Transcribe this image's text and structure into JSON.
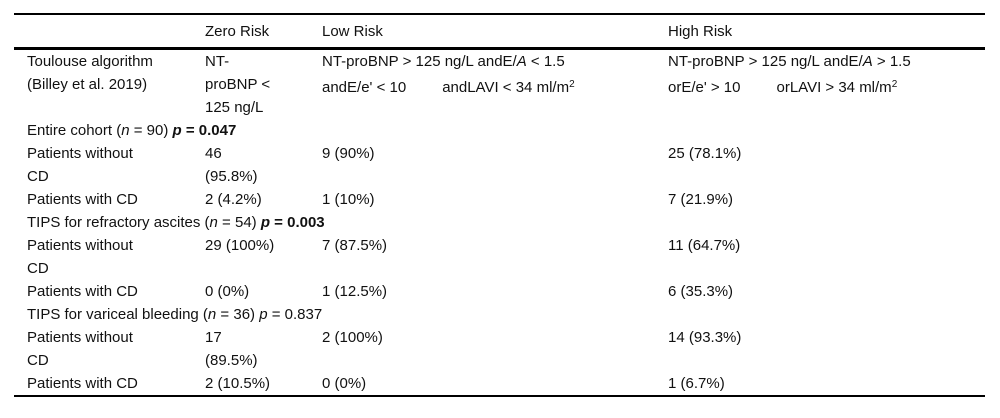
{
  "table": {
    "columns": [
      "",
      "Zero Risk",
      "Low Risk",
      "High Risk"
    ],
    "algorithm": {
      "label_lines": [
        "Toulouse algorithm",
        "(Billey et al. 2019)"
      ],
      "zero_lines": [
        "NT-",
        "proBNP <",
        "125 ng/L"
      ],
      "low_line1": [
        {
          "t": "NT-proBNP > 125 ng/L andE/"
        },
        {
          "t": "A",
          "s": "i"
        },
        {
          "t": " < 1.5"
        }
      ],
      "low_line2": [
        {
          "t": "andE/e' < 10"
        },
        {
          "t": "",
          "s": "gap"
        },
        {
          "t": "andLAVI < 34 ml/m"
        },
        {
          "t": "2",
          "s": "sup"
        }
      ],
      "high_line1": [
        {
          "t": "NT-proBNP > 125 ng/L andE/"
        },
        {
          "t": "A",
          "s": "i"
        },
        {
          "t": " > 1.5"
        }
      ],
      "high_line2": [
        {
          "t": "orE/e' > 10"
        },
        {
          "t": "",
          "s": "gap"
        },
        {
          "t": "orLAVI > 34 ml/m"
        },
        {
          "t": "2",
          "s": "sup"
        }
      ]
    },
    "sections": [
      {
        "heading": [
          {
            "t": "Entire cohort ("
          },
          {
            "t": "n",
            "s": "i"
          },
          {
            "t": " = 90) "
          },
          {
            "t": "p",
            "s": "bi"
          },
          {
            "t": " = 0.047",
            "s": "b"
          }
        ],
        "rows": [
          {
            "label_lines": [
              "Patients without",
              "CD"
            ],
            "zero_lines": [
              "46",
              "(95.8%)"
            ],
            "low": "9 (90%)",
            "high": "25 (78.1%)"
          },
          {
            "label_lines": [
              "Patients with CD"
            ],
            "zero_lines": [
              "2 (4.2%)"
            ],
            "low": "1 (10%)",
            "high": "7 (21.9%)"
          }
        ]
      },
      {
        "heading": [
          {
            "t": "TIPS for refractory ascites ("
          },
          {
            "t": "n",
            "s": "i"
          },
          {
            "t": " = 54) "
          },
          {
            "t": "p",
            "s": "bi"
          },
          {
            "t": " = 0.003",
            "s": "b"
          }
        ],
        "rows": [
          {
            "label_lines": [
              "Patients without",
              "CD"
            ],
            "zero_lines": [
              "29 (100%)"
            ],
            "low": "7 (87.5%)",
            "high": "11 (64.7%)"
          },
          {
            "label_lines": [
              "Patients with CD"
            ],
            "zero_lines": [
              "0 (0%)"
            ],
            "low": "1 (12.5%)",
            "high": "6 (35.3%)"
          }
        ]
      },
      {
        "heading": [
          {
            "t": "TIPS for variceal bleeding ("
          },
          {
            "t": "n",
            "s": "i"
          },
          {
            "t": " = 36) "
          },
          {
            "t": "p",
            "s": "i"
          },
          {
            "t": " = 0.837"
          }
        ],
        "rows": [
          {
            "label_lines": [
              "Patients without",
              "CD"
            ],
            "zero_lines": [
              "17",
              "(89.5%)"
            ],
            "low": "2 (100%)",
            "high": "14 (93.3%)"
          },
          {
            "label_lines": [
              "Patients with CD"
            ],
            "zero_lines": [
              "2 (10.5%)"
            ],
            "low": "0 (0%)",
            "high": "1 (6.7%)"
          }
        ]
      }
    ]
  }
}
